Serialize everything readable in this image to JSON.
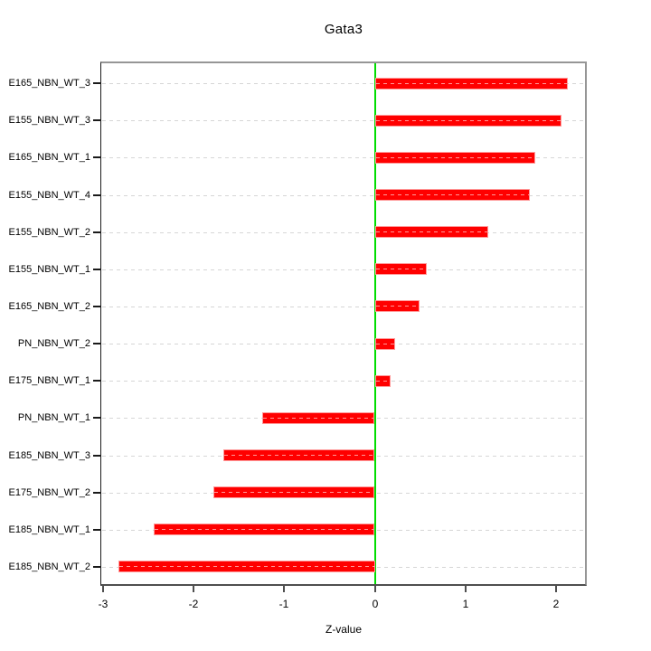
{
  "chart_data": {
    "type": "bar",
    "orientation": "horizontal",
    "title": "Gata3",
    "xlabel": "Z-value",
    "ylabel": "",
    "legend": "none",
    "grid": "dashed-horizontal-per-category",
    "categories": [
      "E165_NBN_WT_3",
      "E155_NBN_WT_3",
      "E165_NBN_WT_1",
      "E155_NBN_WT_4",
      "E155_NBN_WT_2",
      "E155_NBN_WT_1",
      "E165_NBN_WT_2",
      "PN_NBN_WT_2",
      "E175_NBN_WT_1",
      "PN_NBN_WT_1",
      "E185_NBN_WT_3",
      "E175_NBN_WT_2",
      "E185_NBN_WT_1",
      "E185_NBN_WT_2"
    ],
    "values": [
      2.13,
      2.06,
      1.77,
      1.71,
      1.25,
      0.57,
      0.49,
      0.22,
      0.17,
      -1.24,
      -1.67,
      -1.78,
      -2.44,
      -2.83
    ],
    "x_ticks": [
      -3,
      -2,
      -1,
      0,
      1,
      2
    ],
    "x_tick_labels": [
      "-3",
      "-2",
      "-1",
      "0",
      "1",
      "2"
    ],
    "xlim": [
      -3.02,
      2.33
    ],
    "zero_line_x": 0,
    "colors": {
      "bar_fill": "#ff0000",
      "bar_border": "#ff9999",
      "bar_grid_overlay": "#ff9999",
      "grid_line": "#d6d6d6",
      "zero_line": "#00dd00",
      "y_tick": "#1a1a1a",
      "x_tick": "#4f4f4f",
      "text": "#000000"
    }
  }
}
